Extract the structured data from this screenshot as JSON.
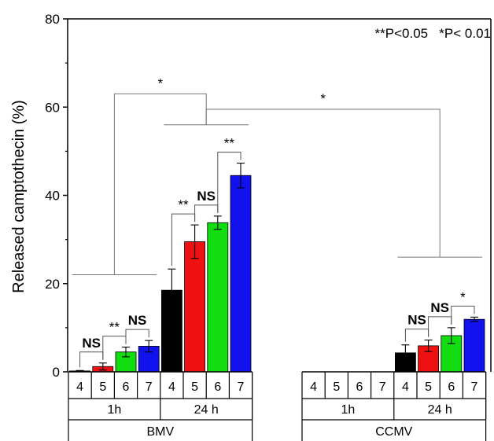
{
  "chart_data": {
    "type": "bar",
    "title": "",
    "ylabel": "Released camptothecin (%)",
    "ylim": [
      0,
      80
    ],
    "yticks": [
      0,
      20,
      40,
      60,
      80
    ],
    "p_note": "**P<0.05   *P< 0.01",
    "colors": {
      "4": "#000000",
      "5": "#ee1111",
      "6": "#11dd11",
      "7": "#1111ee"
    },
    "groups": [
      {
        "name": "BMV",
        "times": [
          {
            "label": "1h",
            "bars": [
              {
                "ph": "4",
                "value": 0.2,
                "err": 0.1
              },
              {
                "ph": "5",
                "value": 1.2,
                "err": 0.8
              },
              {
                "ph": "6",
                "value": 4.5,
                "err": 1.1
              },
              {
                "ph": "7",
                "value": 5.8,
                "err": 1.3
              }
            ],
            "sig": [
              "NS",
              "**",
              "NS"
            ]
          },
          {
            "label": "24 h",
            "bars": [
              {
                "ph": "4",
                "value": 18.5,
                "err": 4.8
              },
              {
                "ph": "5",
                "value": 29.5,
                "err": 3.8
              },
              {
                "ph": "6",
                "value": 33.8,
                "err": 1.5
              },
              {
                "ph": "7",
                "value": 44.5,
                "err": 2.8
              }
            ],
            "sig": [
              "**",
              "NS",
              "**"
            ]
          }
        ]
      },
      {
        "name": "CCMV",
        "times": [
          {
            "label": "1h",
            "bars": [
              {
                "ph": "4",
                "value": null,
                "err": null
              },
              {
                "ph": "5",
                "value": null,
                "err": null
              },
              {
                "ph": "6",
                "value": null,
                "err": null
              },
              {
                "ph": "7",
                "value": null,
                "err": null
              }
            ],
            "sig": []
          },
          {
            "label": "24 h",
            "bars": [
              {
                "ph": "4",
                "value": 4.3,
                "err": 1.8
              },
              {
                "ph": "5",
                "value": 5.9,
                "err": 1.3
              },
              {
                "ph": "6",
                "value": 8.2,
                "err": 1.8
              },
              {
                "ph": "7",
                "value": 11.9,
                "err": 0.5
              }
            ],
            "sig": [
              "NS",
              "NS",
              "*"
            ]
          }
        ]
      }
    ],
    "comparisons": [
      {
        "between": "BMV 1h vs BMV 24 h",
        "label": "*"
      },
      {
        "between": "BMV 24 h vs CCMV 24 h",
        "label": "*"
      }
    ]
  }
}
